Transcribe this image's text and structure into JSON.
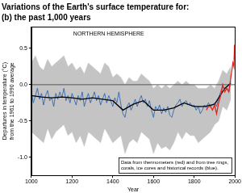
{
  "chart_data": {
    "type": "line",
    "title": "Variations of the Earth's surface temperature for:",
    "subtitle": "(b) the past 1,000 years",
    "annotation": "NORTHERN HEMISPHERE",
    "note": [
      "Data from thermometers (red) and from tree rings,",
      "corals, ice cores and historical records (blue)."
    ],
    "xlabel": "Year",
    "ylabel": [
      "Departures in temperature (°C)",
      "from the 1961 to 1990 average"
    ],
    "xlim": [
      1000,
      2000
    ],
    "xticks": [
      1000,
      1200,
      1400,
      1600,
      1800,
      2000
    ],
    "ylim": [
      -1.25,
      0.8
    ],
    "yticks": [
      {
        "value": -1,
        "label": "-1.0"
      },
      {
        "value": -0.5,
        "label": "-0.5"
      },
      {
        "value": 0,
        "label": "0.0"
      },
      {
        "value": 0.5,
        "label": "0.5"
      }
    ],
    "grid": false,
    "baseline": 0,
    "series": [
      {
        "type": "area",
        "color": "#c4c4c4",
        "x": [
          1000,
          1020,
          1040,
          1060,
          1080,
          1100,
          1120,
          1140,
          1160,
          1180,
          1200,
          1220,
          1240,
          1260,
          1280,
          1300,
          1320,
          1340,
          1360,
          1380,
          1400,
          1420,
          1440,
          1460,
          1480,
          1500,
          1520,
          1540,
          1560,
          1580,
          1600,
          1620,
          1640,
          1660,
          1680,
          1700,
          1720,
          1740,
          1760,
          1780,
          1800,
          1820,
          1840,
          1860,
          1880,
          1900,
          1920,
          1940,
          1960,
          1980
        ],
        "upper": [
          0.3,
          0.4,
          0.25,
          0.2,
          0.35,
          0.25,
          0.3,
          0.35,
          0.4,
          0.25,
          0.3,
          0.2,
          0.25,
          0.15,
          0.3,
          0.25,
          0.2,
          0.15,
          0.3,
          0.25,
          0.1,
          0.15,
          0.1,
          0.0,
          0.1,
          0.05,
          0.05,
          0.15,
          0.1,
          0.05,
          -0.05,
          0.0,
          -0.05,
          0.0,
          -0.05,
          0.0,
          0.05,
          0.0,
          0.05,
          0.0,
          0.0,
          -0.05,
          -0.05,
          -0.05,
          0.0,
          -0.05,
          0.05,
          0.2,
          0.15,
          0.25
        ],
        "lower": [
          -0.65,
          -0.7,
          -0.75,
          -0.8,
          -0.6,
          -0.75,
          -0.65,
          -0.6,
          -0.55,
          -0.7,
          -0.65,
          -0.8,
          -0.7,
          -0.85,
          -0.65,
          -0.7,
          -0.75,
          -0.8,
          -0.6,
          -0.7,
          -0.8,
          -0.75,
          -0.7,
          -0.95,
          -0.8,
          -0.75,
          -0.8,
          -0.65,
          -0.7,
          -0.75,
          -0.95,
          -0.8,
          -0.88,
          -0.85,
          -0.9,
          -0.8,
          -0.65,
          -0.75,
          -0.65,
          -0.7,
          -0.7,
          -0.8,
          -0.75,
          -0.7,
          -0.65,
          -0.55,
          -0.5,
          -0.3,
          -0.35,
          -0.2
        ]
      },
      {
        "type": "line",
        "color": "#1f5cb0",
        "x": [
          1000,
          1010,
          1020,
          1030,
          1040,
          1050,
          1060,
          1070,
          1080,
          1090,
          1100,
          1110,
          1120,
          1130,
          1140,
          1150,
          1160,
          1170,
          1180,
          1190,
          1200,
          1210,
          1220,
          1230,
          1240,
          1250,
          1260,
          1270,
          1280,
          1290,
          1300,
          1310,
          1320,
          1330,
          1340,
          1350,
          1360,
          1370,
          1380,
          1390,
          1400,
          1410,
          1420,
          1430,
          1440,
          1450,
          1460,
          1470,
          1480,
          1490,
          1500,
          1510,
          1520,
          1530,
          1540,
          1550,
          1560,
          1570,
          1580,
          1590,
          1600,
          1610,
          1620,
          1630,
          1640,
          1650,
          1660,
          1670,
          1680,
          1690,
          1700,
          1710,
          1720,
          1730,
          1740,
          1750,
          1760,
          1770,
          1780,
          1790,
          1800,
          1810,
          1820,
          1830,
          1840,
          1850,
          1860,
          1870,
          1880,
          1890,
          1900,
          1910,
          1920,
          1930,
          1940,
          1950,
          1960,
          1970,
          1980
        ],
        "values": [
          -0.1,
          -0.25,
          -0.15,
          -0.05,
          -0.2,
          -0.12,
          -0.28,
          -0.15,
          -0.08,
          -0.22,
          -0.18,
          -0.3,
          -0.12,
          -0.2,
          -0.1,
          -0.18,
          -0.05,
          -0.22,
          -0.15,
          -0.25,
          -0.12,
          -0.2,
          -0.28,
          -0.15,
          -0.22,
          -0.1,
          -0.3,
          -0.2,
          -0.12,
          -0.25,
          -0.18,
          -0.1,
          -0.22,
          -0.15,
          -0.28,
          -0.2,
          -0.12,
          -0.25,
          -0.15,
          -0.22,
          -0.3,
          -0.18,
          -0.25,
          -0.1,
          -0.28,
          -0.4,
          -0.45,
          -0.3,
          -0.25,
          -0.35,
          -0.28,
          -0.2,
          -0.3,
          -0.22,
          -0.15,
          -0.25,
          -0.2,
          -0.3,
          -0.22,
          -0.35,
          -0.45,
          -0.3,
          -0.35,
          -0.28,
          -0.4,
          -0.32,
          -0.38,
          -0.3,
          -0.42,
          -0.45,
          -0.35,
          -0.28,
          -0.25,
          -0.2,
          -0.3,
          -0.25,
          -0.22,
          -0.28,
          -0.25,
          -0.3,
          -0.28,
          -0.35,
          -0.3,
          -0.4,
          -0.35,
          -0.28,
          -0.32,
          -0.25,
          -0.3,
          -0.28,
          -0.25,
          -0.3,
          -0.18,
          -0.1,
          -0.02,
          -0.08,
          -0.05,
          -0.1,
          0.05
        ]
      },
      {
        "type": "line",
        "color": "#000000",
        "x": [
          1000,
          1050,
          1100,
          1150,
          1200,
          1250,
          1300,
          1350,
          1400,
          1450,
          1500,
          1550,
          1600,
          1650,
          1700,
          1750,
          1800,
          1850,
          1900,
          1950,
          1980
        ],
        "values": [
          -0.15,
          -0.17,
          -0.18,
          -0.17,
          -0.18,
          -0.2,
          -0.18,
          -0.2,
          -0.22,
          -0.35,
          -0.27,
          -0.22,
          -0.35,
          -0.35,
          -0.32,
          -0.25,
          -0.3,
          -0.3,
          -0.27,
          -0.05,
          0.02
        ]
      },
      {
        "type": "line",
        "color": "#e3261c",
        "x": [
          1860,
          1870,
          1880,
          1890,
          1900,
          1910,
          1920,
          1930,
          1940,
          1950,
          1960,
          1970,
          1980,
          1990,
          1995,
          1998,
          2000
        ],
        "values": [
          -0.35,
          -0.3,
          -0.3,
          -0.35,
          -0.28,
          -0.4,
          -0.25,
          -0.15,
          0.0,
          -0.1,
          -0.05,
          -0.1,
          0.1,
          0.3,
          0.25,
          0.55,
          0.35
        ]
      }
    ]
  }
}
